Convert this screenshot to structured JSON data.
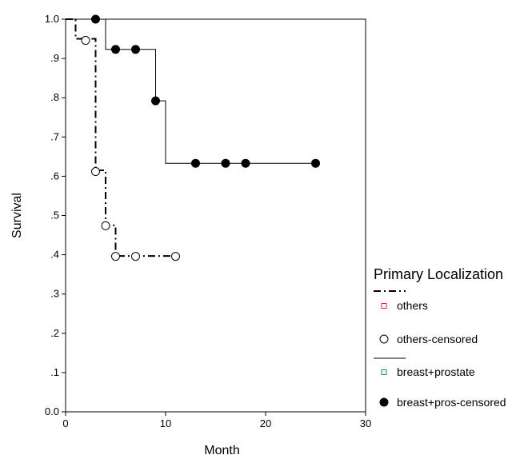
{
  "chart_data": {
    "type": "line",
    "subtype": "kaplan-meier survival (step)",
    "xlabel": "Month",
    "ylabel": "Survival",
    "xlim": [
      0,
      30
    ],
    "ylim": [
      0,
      1
    ],
    "x_ticks": [
      "0",
      "10",
      "20",
      "30"
    ],
    "y_ticks": [
      "0.0",
      ".1",
      ".2",
      ".3",
      ".4",
      ".5",
      ".6",
      ".7",
      ".8",
      ".9",
      "1.0"
    ],
    "grid": false,
    "legend_position": "right",
    "legend": {
      "title": "Primary Localization",
      "entries": [
        {
          "label": "others",
          "kind": "line",
          "style": "dash-dot",
          "marker_color": "#d01c8b"
        },
        {
          "label": "others-censored",
          "kind": "marker",
          "marker": "open-circle"
        },
        {
          "label": "breast+prostate",
          "kind": "line",
          "style": "solid",
          "marker_color": "#1a9641"
        },
        {
          "label": "breast+pros-censored",
          "kind": "marker",
          "marker": "filled-circle"
        }
      ]
    },
    "series": [
      {
        "name": "others",
        "line_style": "dash-dot",
        "steps": [
          [
            0,
            1.0
          ],
          [
            1,
            0.95
          ],
          [
            3,
            0.615
          ],
          [
            4,
            0.475
          ],
          [
            5,
            0.397
          ],
          [
            11,
            0.397
          ]
        ],
        "censored": [
          [
            2,
            0.946
          ],
          [
            3,
            0.612
          ],
          [
            4,
            0.474
          ],
          [
            5,
            0.396
          ],
          [
            7,
            0.396
          ],
          [
            11,
            0.396
          ]
        ]
      },
      {
        "name": "breast+prostate",
        "line_style": "solid",
        "steps": [
          [
            0,
            1.0
          ],
          [
            4,
            0.923
          ],
          [
            9,
            0.792
          ],
          [
            10,
            0.633
          ],
          [
            25,
            0.633
          ]
        ],
        "censored": [
          [
            3,
            1.0
          ],
          [
            5,
            0.923
          ],
          [
            7,
            0.923
          ],
          [
            9,
            0.792
          ],
          [
            13,
            0.633
          ],
          [
            16,
            0.633
          ],
          [
            18,
            0.633
          ],
          [
            25,
            0.633
          ]
        ]
      }
    ]
  }
}
